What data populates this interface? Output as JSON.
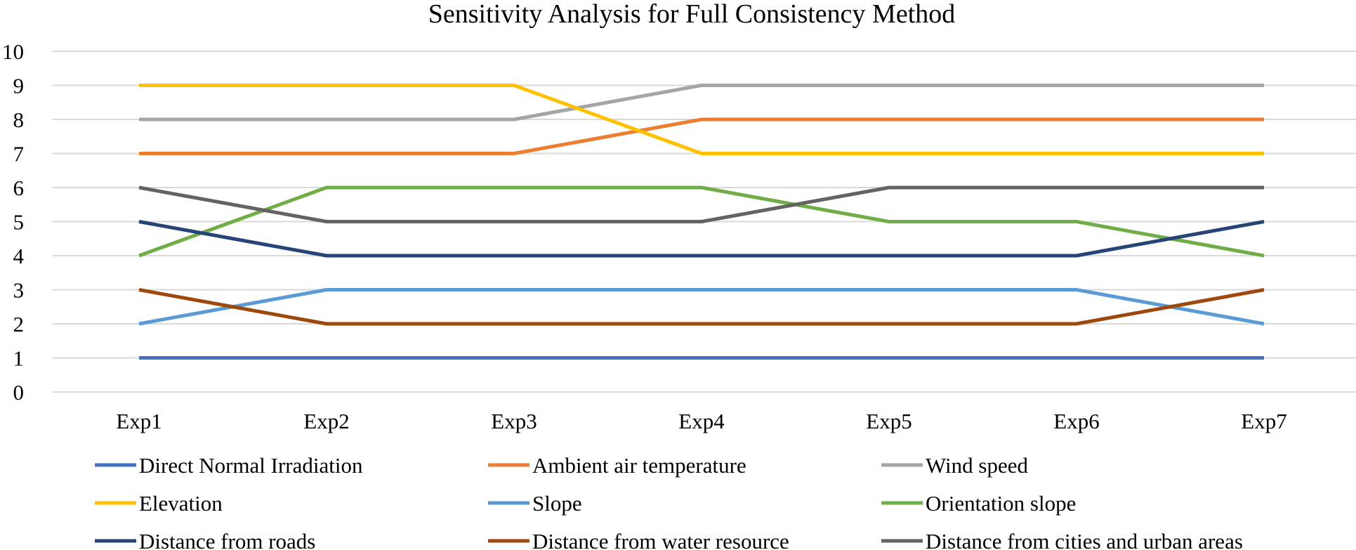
{
  "chart_data": {
    "type": "line",
    "title": "Sensitivity Analysis for Full Consistency Method",
    "xlabel": "",
    "ylabel": "",
    "categories": [
      "Exp1",
      "Exp2",
      "Exp3",
      "Exp4",
      "Exp5",
      "Exp6",
      "Exp7"
    ],
    "ylim": [
      0,
      10
    ],
    "yticks": [
      0,
      1,
      2,
      3,
      4,
      5,
      6,
      7,
      8,
      9,
      10
    ],
    "grid": "horizontal",
    "legend_position": "bottom",
    "series": [
      {
        "name": "Direct Normal Irradiation",
        "color": "#4472C4",
        "values": [
          1,
          1,
          1,
          1,
          1,
          1,
          1
        ]
      },
      {
        "name": "Ambient air temperature",
        "color": "#ED7D31",
        "values": [
          7,
          7,
          7,
          8,
          8,
          8,
          8
        ]
      },
      {
        "name": "Wind speed",
        "color": "#A5A5A5",
        "values": [
          8,
          8,
          8,
          9,
          9,
          9,
          9
        ]
      },
      {
        "name": "Elevation",
        "color": "#FFC000",
        "values": [
          9,
          9,
          9,
          7,
          7,
          7,
          7
        ]
      },
      {
        "name": "Slope",
        "color": "#5B9BD5",
        "values": [
          2,
          3,
          3,
          3,
          3,
          3,
          2
        ]
      },
      {
        "name": "Orientation slope",
        "color": "#70AD47",
        "values": [
          4,
          6,
          6,
          6,
          5,
          5,
          4
        ]
      },
      {
        "name": "Distance from roads",
        "color": "#264478",
        "values": [
          5,
          4,
          4,
          4,
          4,
          4,
          5
        ]
      },
      {
        "name": "Distance from water resource",
        "color": "#9E480E",
        "values": [
          3,
          2,
          2,
          2,
          2,
          2,
          3
        ]
      },
      {
        "name": "Distance from cities and urban areas",
        "color": "#636363",
        "values": [
          6,
          5,
          5,
          5,
          6,
          6,
          6
        ]
      }
    ]
  }
}
